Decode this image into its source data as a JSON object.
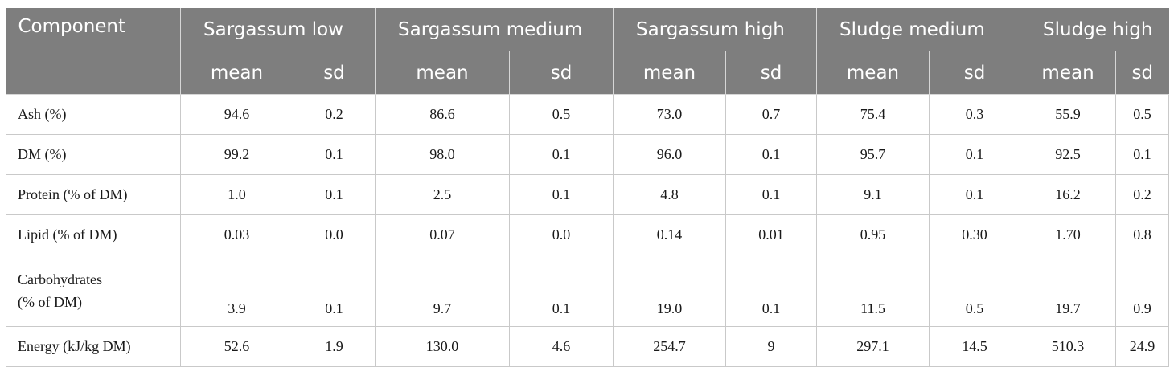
{
  "table": {
    "header_component": "Component",
    "groups": [
      "Sargassum low",
      "Sargassum medium",
      "Sargassum high",
      "Sludge medium",
      "Sludge high"
    ],
    "sub_headers": [
      "mean",
      "sd",
      "mean",
      "sd",
      "mean",
      "sd",
      "mean",
      "sd",
      "mean",
      "sd"
    ],
    "rows": [
      {
        "label": "Ash (%)",
        "values": [
          "94.6",
          "0.2",
          "86.6",
          "0.5",
          "73.0",
          "0.7",
          "75.4",
          "0.3",
          "55.9",
          "0.5"
        ]
      },
      {
        "label": "DM (%)",
        "values": [
          "99.2",
          "0.1",
          "98.0",
          "0.1",
          "96.0",
          "0.1",
          "95.7",
          "0.1",
          "92.5",
          "0.1"
        ]
      },
      {
        "label": "Protein (% of DM)",
        "values": [
          "1.0",
          "0.1",
          "2.5",
          "0.1",
          "4.8",
          "0.1",
          "9.1",
          "0.1",
          "16.2",
          "0.2"
        ]
      },
      {
        "label": "Lipid (% of DM)",
        "values": [
          "0.03",
          "0.0",
          "0.07",
          "0.0",
          "0.14",
          "0.01",
          "0.95",
          "0.30",
          "1.70",
          "0.8"
        ]
      },
      {
        "label_lines": [
          "Carbohydrates",
          "(% of DM)"
        ],
        "values": [
          "3.9",
          "0.1",
          "9.7",
          "0.1",
          "19.0",
          "0.1",
          "11.5",
          "0.5",
          "19.7",
          "0.9"
        ]
      },
      {
        "label": "Energy (kJ/kg DM)",
        "values": [
          "52.6",
          "1.9",
          "130.0",
          "4.6",
          "254.7",
          "9",
          "297.1",
          "14.5",
          "510.3",
          "24.9"
        ]
      }
    ]
  }
}
